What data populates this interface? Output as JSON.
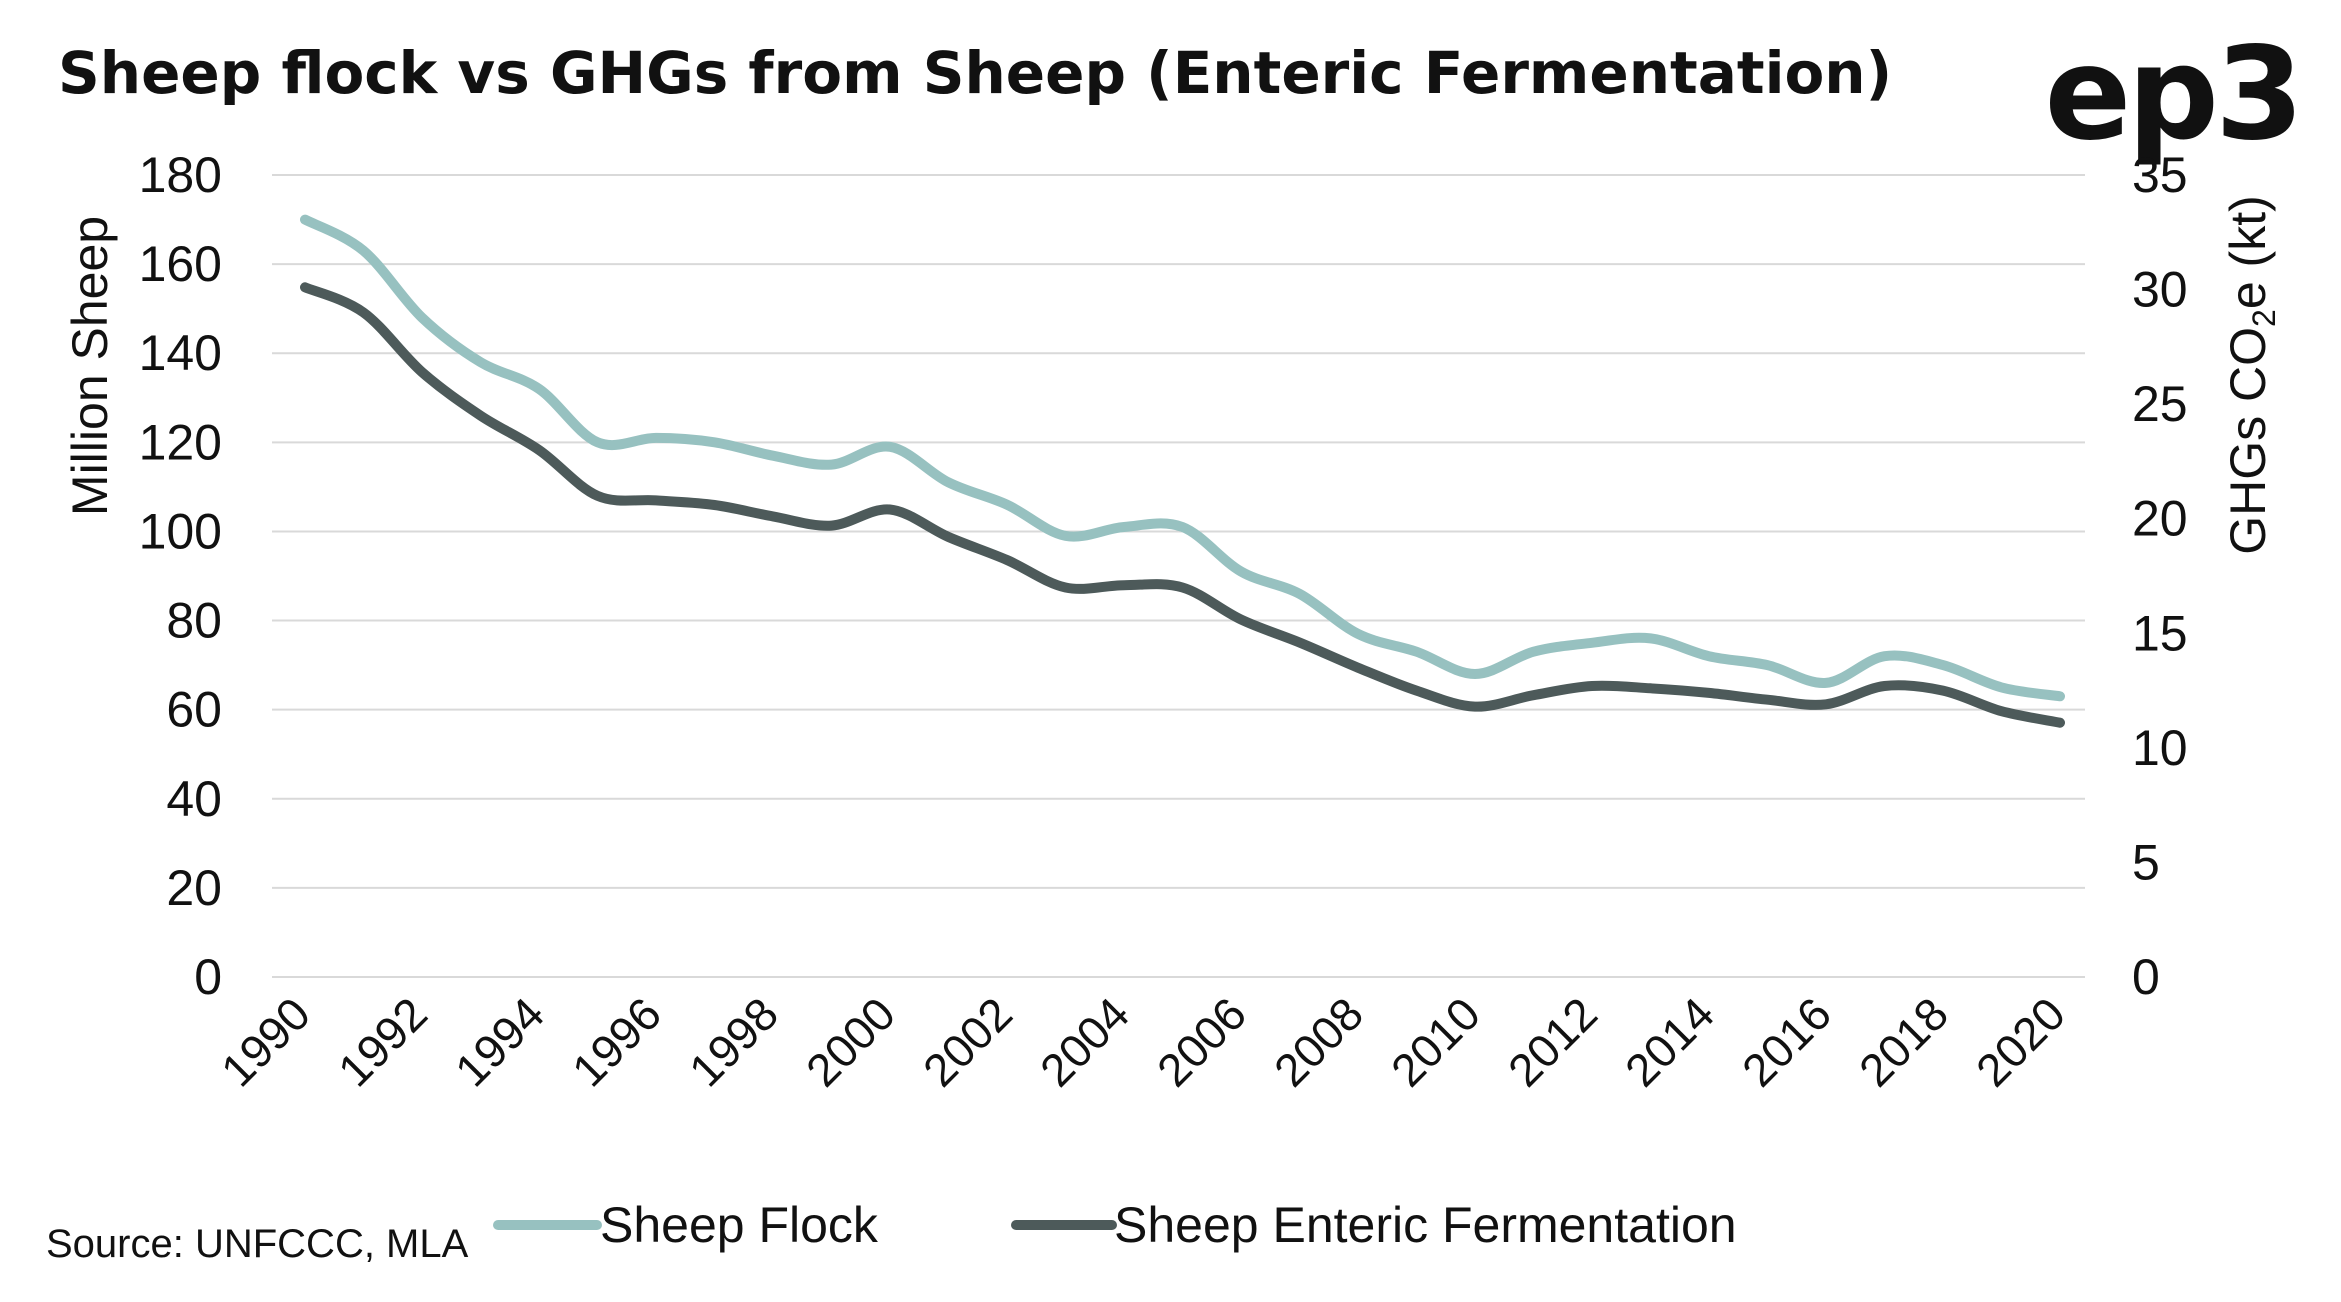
{
  "chart_data": {
    "type": "line",
    "title": "Sheep flock vs GHGs from Sheep (Enteric Fermentation)",
    "logo_text": "ep3",
    "source": "Source: UNFCCC, MLA",
    "y_left": {
      "label": "Million Sheep",
      "ylim": [
        0,
        180
      ],
      "ticks": [
        0,
        20,
        40,
        60,
        80,
        100,
        120,
        140,
        160,
        180
      ]
    },
    "y_right": {
      "label_main": "GHGs CO",
      "label_sub": "2",
      "label_tail": "e (kt)",
      "ylim": [
        0,
        35
      ],
      "ticks": [
        0,
        5,
        10,
        15,
        20,
        25,
        30,
        35
      ]
    },
    "x_tick_labels": [
      "1990",
      "1992",
      "1994",
      "1996",
      "1998",
      "2000",
      "2002",
      "2004",
      "2006",
      "2008",
      "2010",
      "2012",
      "2014",
      "2016",
      "2018",
      "2020"
    ],
    "x": [
      1990,
      1991,
      1992,
      1993,
      1994,
      1995,
      1996,
      1997,
      1998,
      1999,
      2000,
      2001,
      2002,
      2003,
      2004,
      2005,
      2006,
      2007,
      2008,
      2009,
      2010,
      2011,
      2012,
      2013,
      2014,
      2015,
      2016,
      2017,
      2018,
      2019,
      2020
    ],
    "grid": true,
    "legend_position": "bottom",
    "series": [
      {
        "name": "Sheep Flock",
        "axis": "left",
        "color": "#97c1c0",
        "values": [
          170,
          163,
          148,
          138,
          132,
          120,
          121,
          120,
          117,
          115,
          119,
          111,
          106,
          99,
          101,
          101,
          91,
          86,
          77,
          73,
          68,
          73,
          75,
          76,
          72,
          70,
          66,
          72,
          70,
          65,
          63
        ]
      },
      {
        "name": "Sheep Enteric Fermentation",
        "axis": "right",
        "color": "#4d5a5a",
        "values": [
          30.1,
          29.0,
          26.4,
          24.5,
          23.0,
          21.0,
          20.8,
          20.6,
          20.1,
          19.7,
          20.4,
          19.2,
          18.2,
          17.0,
          17.1,
          17.0,
          15.6,
          14.6,
          13.5,
          12.5,
          11.8,
          12.3,
          12.7,
          12.6,
          12.4,
          12.1,
          11.9,
          12.7,
          12.5,
          11.6,
          11.1
        ]
      }
    ]
  }
}
